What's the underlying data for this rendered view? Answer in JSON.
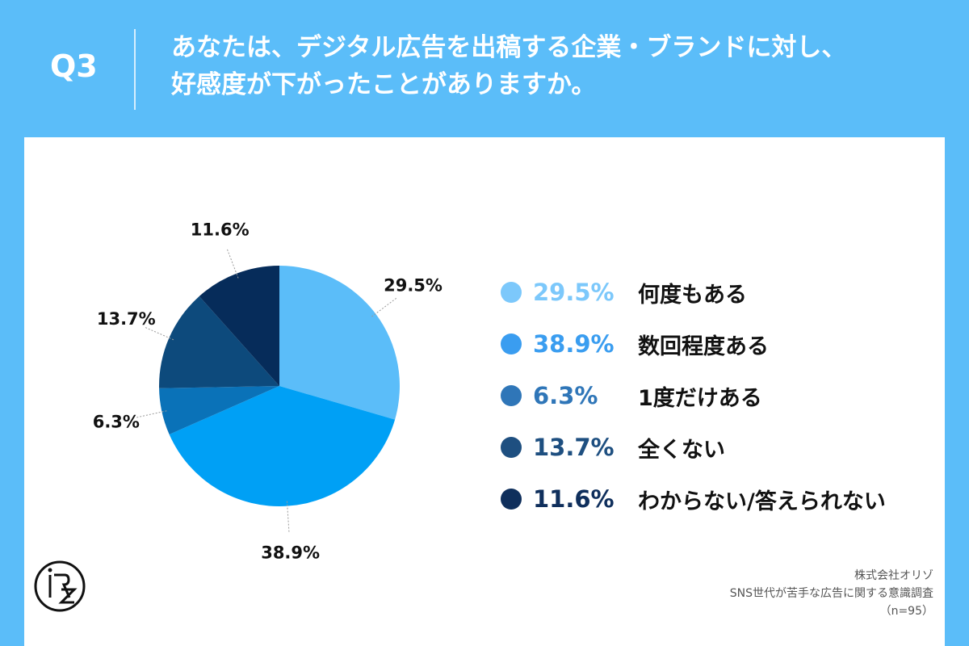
{
  "header": {
    "q_number": "Q3",
    "question_line1": "あなたは、デジタル広告を出稿する企業・ブランドに対し、",
    "question_line2": "好感度が下がったことがありますか。"
  },
  "chart_data": {
    "type": "pie",
    "title": "",
    "slices": [
      {
        "label": "何度もある",
        "value": 29.5,
        "display": "29.5%",
        "color": "#5bbdf9",
        "legend_color": "#7cc8fb"
      },
      {
        "label": "数回程度ある",
        "value": 38.9,
        "display": "38.9%",
        "color": "#00a0f5",
        "legend_color": "#3a9df0"
      },
      {
        "label": "1度だけある",
        "value": 6.3,
        "display": "6.3%",
        "color": "#0a72b8",
        "legend_color": "#2f76b8"
      },
      {
        "label": "全くない",
        "value": 13.7,
        "display": "13.7%",
        "color": "#0d4a7c",
        "legend_color": "#1e4f80"
      },
      {
        "label": "わからない/答えられない",
        "value": 11.6,
        "display": "11.6%",
        "color": "#062c5a",
        "legend_color": "#0f2f5c"
      }
    ],
    "start_angle_deg": 0,
    "direction": "clockwise",
    "legend_position": "right",
    "value_labels": "outside with leader lines"
  },
  "logo": {
    "icon": "orizo-logo-icon"
  },
  "credits": {
    "company": "株式会社オリゾ",
    "survey": "SNS世代が苦手な広告に関する意識調査",
    "sample": "（n=95）"
  }
}
